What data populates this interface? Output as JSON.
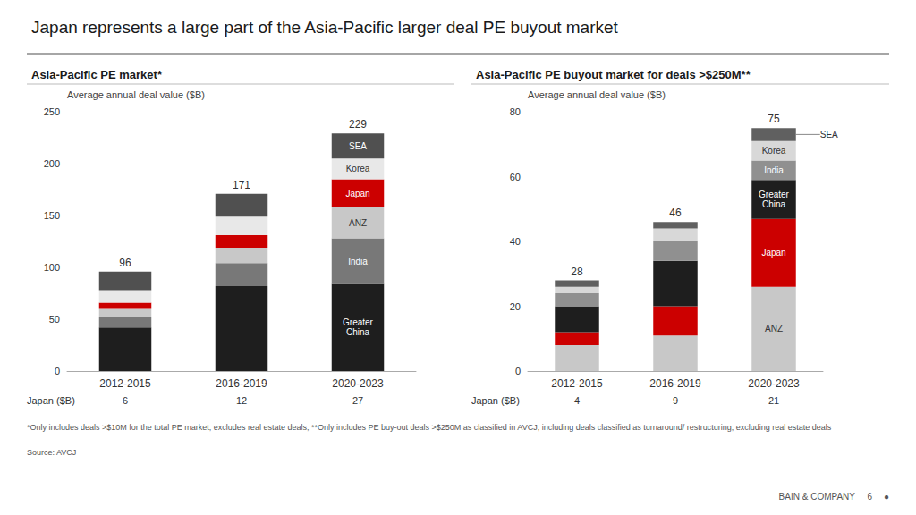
{
  "title": "Japan represents a large part of the Asia-Pacific larger deal PE buyout market",
  "footnotes": [
    "*Only includes deals >$10M for the total PE market, excludes real estate deals; **Only includes PE buy-out deals >$250M as classified in AVCJ, including deals classified as turnaround/ restructuring, excluding real estate deals",
    "Source: AVCJ"
  ],
  "annotations": [
    "BAIN & COMPANY",
    "6",
    "●"
  ],
  "chart_data": [
    {
      "type": "bar",
      "stacked": true,
      "grid": false,
      "title": "Asia-Pacific PE market*",
      "y_label": "Average annual deal value ($B)",
      "categories": [
        "2012-2015",
        "2016-2019",
        "2020-2023"
      ],
      "ylim": [
        0,
        250
      ],
      "yticks": [
        0,
        50,
        100,
        150,
        200,
        250
      ],
      "series": [
        {
          "name": "Greater China",
          "color": "#1e1e1e",
          "values": [
            42,
            82,
            84
          ]
        },
        {
          "name": "India",
          "color": "#787878",
          "values": [
            10,
            22,
            44
          ]
        },
        {
          "name": "ANZ",
          "color": "#c8c8c8",
          "values": [
            8,
            15,
            30
          ]
        },
        {
          "name": "Japan",
          "color": "#cc0000",
          "values": [
            6,
            12,
            27
          ]
        },
        {
          "name": "Korea",
          "color": "#e8e8e8",
          "values": [
            12,
            18,
            20
          ]
        },
        {
          "name": "SEA",
          "color": "#505050",
          "values": [
            18,
            22,
            24
          ]
        }
      ],
      "totals": [
        96,
        171,
        229
      ],
      "row_label": "Japan ($B)",
      "row_values": [
        6,
        12,
        27
      ]
    },
    {
      "type": "bar",
      "stacked": true,
      "grid": false,
      "title": "Asia-Pacific PE buyout market for deals >$250M**",
      "y_label": "Average annual deal value ($B)",
      "categories": [
        "2012-2015",
        "2016-2019",
        "2020-2023"
      ],
      "ylim": [
        0,
        80
      ],
      "yticks": [
        0,
        20,
        40,
        60,
        80
      ],
      "series": [
        {
          "name": "ANZ",
          "color": "#c8c8c8",
          "values": [
            8,
            11,
            26
          ]
        },
        {
          "name": "Japan",
          "color": "#cc0000",
          "values": [
            4,
            9,
            21
          ]
        },
        {
          "name": "Greater China",
          "color": "#1e1e1e",
          "values": [
            8,
            14,
            12
          ]
        },
        {
          "name": "India",
          "color": "#909090",
          "values": [
            4,
            6,
            6
          ]
        },
        {
          "name": "Korea",
          "color": "#d8d8d8",
          "values": [
            2,
            4,
            6
          ]
        },
        {
          "name": "SEA",
          "color": "#606060",
          "values": [
            2,
            2,
            4
          ]
        }
      ],
      "totals": [
        28,
        46,
        75
      ],
      "row_label": "Japan ($B)",
      "row_values": [
        4,
        9,
        21
      ]
    }
  ]
}
